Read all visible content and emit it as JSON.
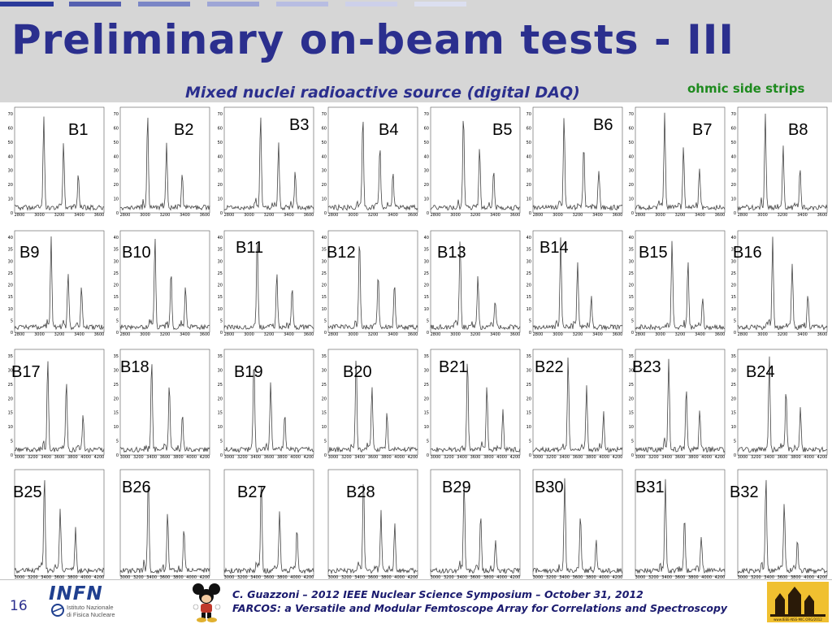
{
  "slide": {
    "title": "Preliminary on-beam tests - III",
    "subtitle": "Mixed nuclei radioactive source (digital DAQ)",
    "side_note": "ohmic side strips",
    "page_number": "16"
  },
  "colors": {
    "title": "#2b2f8e",
    "side_note": "#1e8a1e",
    "header_band": "#d6d6d6",
    "dashes": [
      "#2b3a9a",
      "#5560b0",
      "#7a86c6",
      "#9ea6d6",
      "#b8bde2",
      "#cdd0ea",
      "#dcdff0"
    ],
    "spectrum_line": "#444444"
  },
  "spectra": {
    "description_of_panels": "32 energy spectra, each showing three alpha peaks",
    "labels": [
      "B1",
      "B2",
      "B3",
      "B4",
      "B5",
      "B6",
      "B7",
      "B8",
      "B9",
      "B10",
      "B11",
      "B12",
      "B13",
      "B14",
      "B15",
      "B16",
      "B17",
      "B18",
      "B19",
      "B20",
      "B21",
      "B22",
      "B23",
      "B24",
      "B25",
      "B26",
      "B27",
      "B28",
      "B29",
      "B30",
      "B31",
      "B32"
    ],
    "row_x_ticks": [
      [
        "2800",
        "3000",
        "3200",
        "3400",
        "3600"
      ],
      [
        "2800",
        "3000",
        "3200",
        "3400",
        "3600"
      ],
      [
        "3000",
        "3200",
        "3400",
        "3600",
        "3800",
        "4000",
        "4200"
      ],
      [
        "3000",
        "3200",
        "3400",
        "3600",
        "3800",
        "4000",
        "4200"
      ]
    ],
    "row_y_ticks": [
      [
        "0",
        "10",
        "20",
        "30",
        "40",
        "50",
        "60",
        "70"
      ],
      [
        "0",
        "5",
        "10",
        "15",
        "20",
        "25",
        "30",
        "35",
        "40"
      ],
      [
        "0",
        "5",
        "10",
        "15",
        "20",
        "25",
        "30",
        "35"
      ],
      []
    ]
  },
  "footer": {
    "logo_word": "INFN",
    "logo_line1": "Istituto Nazionale",
    "logo_line2": "di Fisica Nucleare",
    "line1": "C. Guazzoni – 2012 IEEE Nuclear Science Symposium – October 31, 2012",
    "line2": "FARCOS: a Versatile and Modular Femtoscope Array for Correlations and Spectroscopy",
    "badge_text": "www.IEEE-NSS-MIC.ORG/2012"
  }
}
